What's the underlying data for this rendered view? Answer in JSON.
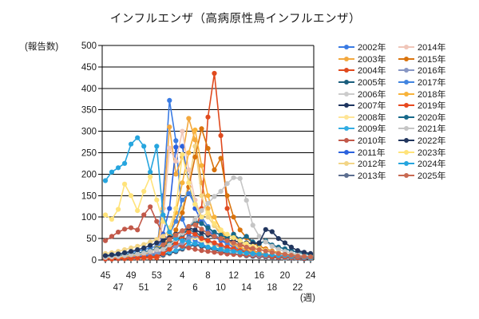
{
  "chart_data": {
    "type": "line",
    "title": "インフルエンザ（高病原性鳥インフルエンザ）",
    "y_unit_label": "(報告数)",
    "x_unit_label": "(週)",
    "ylim": [
      0,
      500
    ],
    "ytick_step": 50,
    "grid": true,
    "legend_position": "right",
    "categories": [
      45,
      46,
      47,
      48,
      49,
      50,
      51,
      52,
      53,
      1,
      2,
      3,
      4,
      5,
      6,
      7,
      8,
      9,
      10,
      11,
      12,
      13,
      14,
      15,
      16,
      17,
      18,
      19,
      20,
      21,
      22,
      23,
      24
    ],
    "series": [
      {
        "name": "2002年",
        "color": "#3A7BE3",
        "values": [
          2,
          3,
          3,
          4,
          4,
          5,
          6,
          8,
          20,
          150,
          372,
          278,
          95,
          60,
          45,
          38,
          30,
          25,
          20,
          16,
          14,
          12,
          10,
          8,
          8,
          6,
          6,
          5,
          5,
          4,
          4,
          3,
          3
        ]
      },
      {
        "name": "2003年",
        "color": "#F3A83E",
        "values": [
          5,
          6,
          8,
          10,
          12,
          10,
          14,
          18,
          25,
          120,
          310,
          200,
          240,
          330,
          280,
          180,
          120,
          80,
          60,
          45,
          35,
          28,
          22,
          18,
          15,
          12,
          10,
          8,
          7,
          6,
          5,
          4,
          4
        ]
      },
      {
        "name": "2004年",
        "color": "#E04A1E",
        "values": [
          2,
          2,
          3,
          3,
          3,
          4,
          4,
          5,
          5,
          10,
          20,
          35,
          30,
          45,
          60,
          120,
          333,
          435,
          290,
          120,
          60,
          40,
          30,
          22,
          17,
          13,
          10,
          8,
          7,
          6,
          5,
          4,
          3
        ]
      },
      {
        "name": "2005年",
        "color": "#1B5E7D",
        "values": [
          5,
          6,
          7,
          8,
          8,
          9,
          10,
          12,
          14,
          20,
          30,
          45,
          60,
          70,
          65,
          55,
          45,
          38,
          30,
          25,
          20,
          17,
          14,
          12,
          10,
          9,
          8,
          7,
          6,
          5,
          5,
          4,
          4
        ]
      },
      {
        "name": "2006年",
        "color": "#CCCCCC",
        "values": [
          3,
          3,
          4,
          4,
          5,
          5,
          6,
          7,
          8,
          10,
          14,
          18,
          24,
          30,
          34,
          30,
          26,
          22,
          18,
          15,
          13,
          11,
          9,
          8,
          7,
          6,
          5,
          5,
          4,
          4,
          3,
          3,
          3
        ]
      },
      {
        "name": "2007年",
        "color": "#1E3560",
        "values": [
          4,
          4,
          5,
          5,
          6,
          6,
          7,
          8,
          9,
          12,
          16,
          20,
          26,
          32,
          36,
          32,
          28,
          24,
          20,
          17,
          14,
          12,
          10,
          9,
          8,
          7,
          6,
          5,
          5,
          4,
          4,
          3,
          3
        ]
      },
      {
        "name": "2008年",
        "color": "#FFE596",
        "values": [
          8,
          7,
          9,
          10,
          12,
          11,
          13,
          15,
          17,
          20,
          26,
          32,
          40,
          48,
          52,
          46,
          40,
          34,
          28,
          24,
          20,
          17,
          14,
          12,
          10,
          9,
          8,
          7,
          6,
          5,
          5,
          4,
          4
        ]
      },
      {
        "name": "2009年",
        "color": "#33ADE3",
        "values": [
          5,
          5,
          6,
          7,
          8,
          9,
          10,
          11,
          12,
          14,
          18,
          22,
          28,
          34,
          38,
          34,
          30,
          26,
          22,
          18,
          15,
          13,
          11,
          10,
          9,
          8,
          7,
          6,
          5,
          5,
          4,
          4,
          3
        ]
      },
      {
        "name": "2010年",
        "color": "#C2594A",
        "values": [
          45,
          55,
          65,
          72,
          75,
          70,
          105,
          124,
          90,
          60,
          45,
          38,
          32,
          28,
          25,
          22,
          20,
          18,
          16,
          14,
          13,
          12,
          11,
          10,
          9,
          8,
          7,
          6,
          6,
          5,
          5,
          4,
          4
        ]
      },
      {
        "name": "2011年",
        "color": "#2B62DE",
        "values": [
          3,
          3,
          4,
          5,
          6,
          8,
          10,
          12,
          15,
          60,
          120,
          263,
          265,
          180,
          120,
          90,
          70,
          55,
          45,
          38,
          32,
          26,
          22,
          18,
          15,
          12,
          10,
          8,
          7,
          6,
          5,
          4,
          4
        ]
      },
      {
        "name": "2012年",
        "color": "#F2D587",
        "values": [
          15,
          17,
          20,
          24,
          28,
          32,
          36,
          42,
          48,
          55,
          70,
          90,
          120,
          180,
          265,
          150,
          100,
          80,
          65,
          55,
          46,
          40,
          34,
          29,
          25,
          21,
          18,
          15,
          13,
          11,
          9,
          8,
          7
        ]
      },
      {
        "name": "2013年",
        "color": "#5C6E90",
        "values": [
          6,
          7,
          8,
          9,
          10,
          11,
          12,
          14,
          16,
          20,
          26,
          33,
          42,
          52,
          58,
          52,
          46,
          40,
          34,
          28,
          24,
          20,
          17,
          14,
          12,
          10,
          9,
          8,
          7,
          6,
          5,
          5,
          4
        ]
      },
      {
        "name": "2014年",
        "color": "#F0C6B9",
        "values": [
          5,
          6,
          7,
          8,
          9,
          10,
          12,
          14,
          18,
          90,
          261,
          230,
          300,
          210,
          140,
          100,
          75,
          60,
          48,
          40,
          33,
          27,
          22,
          18,
          15,
          12,
          10,
          9,
          8,
          7,
          6,
          5,
          4
        ]
      },
      {
        "name": "2015年",
        "color": "#D9730D",
        "values": [
          8,
          9,
          10,
          12,
          14,
          16,
          18,
          21,
          24,
          30,
          45,
          70,
          110,
          170,
          240,
          306,
          260,
          210,
          237,
          150,
          100,
          70,
          52,
          40,
          32,
          26,
          21,
          17,
          14,
          12,
          10,
          8,
          7
        ]
      },
      {
        "name": "2016年",
        "color": "#8897C4",
        "values": [
          5,
          6,
          7,
          8,
          9,
          10,
          12,
          14,
          16,
          20,
          25,
          32,
          40,
          50,
          56,
          50,
          44,
          38,
          32,
          27,
          22,
          19,
          16,
          13,
          11,
          10,
          9,
          8,
          7,
          6,
          5,
          5,
          4
        ]
      },
      {
        "name": "2017年",
        "color": "#4285E0",
        "values": [
          10,
          12,
          14,
          16,
          18,
          20,
          24,
          28,
          32,
          40,
          60,
          90,
          140,
          155,
          130,
          100,
          78,
          60,
          48,
          38,
          30,
          25,
          20,
          17,
          14,
          12,
          10,
          9,
          8,
          7,
          6,
          5,
          5
        ]
      },
      {
        "name": "2018年",
        "color": "#F8B33A",
        "values": [
          4,
          5,
          6,
          8,
          10,
          12,
          15,
          20,
          28,
          35,
          60,
          110,
          180,
          250,
          303,
          220,
          150,
          100,
          70,
          50,
          38,
          30,
          24,
          20,
          16,
          13,
          11,
          9,
          8,
          7,
          6,
          5,
          4
        ]
      },
      {
        "name": "2019年",
        "color": "#E8491F",
        "values": [
          3,
          3,
          4,
          4,
          5,
          5,
          6,
          7,
          8,
          15,
          25,
          40,
          55,
          65,
          60,
          50,
          45,
          40,
          35,
          30,
          26,
          22,
          18,
          15,
          13,
          11,
          9,
          8,
          7,
          6,
          5,
          4,
          4
        ]
      },
      {
        "name": "2020年",
        "color": "#17698A",
        "values": [
          8,
          9,
          10,
          12,
          14,
          16,
          18,
          22,
          26,
          30,
          38,
          48,
          60,
          75,
          90,
          85,
          75,
          65,
          58,
          52,
          60,
          48,
          55,
          42,
          38,
          45,
          35,
          30,
          26,
          22,
          18,
          15,
          12
        ]
      },
      {
        "name": "2021年",
        "color": "#C5C5C5",
        "values": [
          6,
          7,
          8,
          10,
          12,
          14,
          16,
          20,
          24,
          25,
          35,
          48,
          62,
          78,
          95,
          115,
          132,
          148,
          160,
          178,
          192,
          190,
          139,
          81,
          55,
          42,
          32,
          25,
          20,
          16,
          13,
          10,
          8
        ]
      },
      {
        "name": "2022年",
        "color": "#22365E",
        "values": [
          10,
          12,
          14,
          17,
          20,
          24,
          28,
          34,
          40,
          45,
          52,
          60,
          68,
          75,
          70,
          64,
          58,
          54,
          50,
          46,
          44,
          42,
          40,
          38,
          40,
          71,
          66,
          50,
          40,
          30,
          22,
          18,
          15
        ]
      },
      {
        "name": "2023年",
        "color": "#FFE37A",
        "values": [
          105,
          95,
          118,
          177,
          150,
          115,
          160,
          194,
          140,
          90,
          75,
          120,
          246,
          180,
          130,
          100,
          110,
          85,
          70,
          60,
          52,
          45,
          38,
          32,
          27,
          23,
          19,
          16,
          13,
          11,
          9,
          8,
          7
        ]
      },
      {
        "name": "2024年",
        "color": "#26A5DE",
        "values": [
          185,
          205,
          215,
          225,
          270,
          285,
          265,
          205,
          265,
          105,
          65,
          50,
          45,
          42,
          38,
          35,
          30,
          28,
          25,
          22,
          20,
          18,
          16,
          15,
          14,
          12,
          12,
          10,
          10,
          8,
          8,
          6,
          5
        ]
      },
      {
        "name": "2025年",
        "color": "#C96A52",
        "values": [
          null,
          null,
          null,
          null,
          null,
          null,
          null,
          null,
          null,
          35,
          48,
          58,
          68,
          78,
          82,
          72,
          62,
          55,
          50,
          45,
          40,
          35,
          30,
          27,
          24,
          21,
          18,
          15,
          13,
          11,
          9,
          8,
          7
        ]
      }
    ]
  }
}
